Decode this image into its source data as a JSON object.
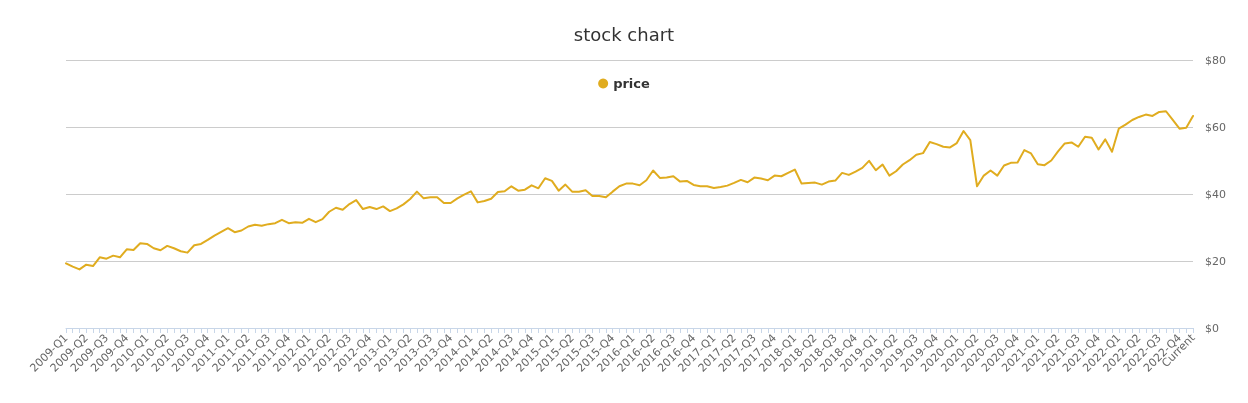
{
  "chart_data": {
    "type": "line",
    "title": "stock chart",
    "categories": [
      "2009-Q1",
      null,
      null,
      "2009-Q2",
      null,
      null,
      "2009-Q3",
      null,
      null,
      "2009-Q4",
      null,
      null,
      "2010-Q1",
      null,
      null,
      "2010-Q2",
      null,
      null,
      "2010-Q3",
      null,
      null,
      "2010-Q4",
      null,
      null,
      "2011-Q1",
      null,
      null,
      "2011-Q2",
      null,
      null,
      "2011-Q3",
      null,
      null,
      "2011-Q4",
      null,
      null,
      "2012-Q1",
      null,
      null,
      "2012-Q2",
      null,
      null,
      "2012-Q3",
      null,
      null,
      "2012-Q4",
      null,
      null,
      "2013-Q1",
      null,
      null,
      "2013-Q2",
      null,
      null,
      "2013-Q3",
      null,
      null,
      "2013-Q4",
      null,
      null,
      "2014-Q1",
      null,
      null,
      "2014-Q2",
      null,
      null,
      "2014-Q3",
      null,
      null,
      "2014-Q4",
      null,
      null,
      "2015-Q1",
      null,
      null,
      "2015-Q2",
      null,
      null,
      "2015-Q3",
      null,
      null,
      "2015-Q4",
      null,
      null,
      "2016-Q1",
      null,
      null,
      "2016-Q2",
      null,
      null,
      "2016-Q3",
      null,
      null,
      "2016-Q4",
      null,
      null,
      "2017-Q1",
      null,
      null,
      "2017-Q2",
      null,
      null,
      "2017-Q3",
      null,
      null,
      "2017-Q4",
      null,
      null,
      "2018-Q1",
      null,
      null,
      "2018-Q2",
      null,
      null,
      "2018-Q3",
      null,
      null,
      "2018-Q4",
      null,
      null,
      "2019-Q1",
      null,
      null,
      "2019-Q2",
      null,
      null,
      "2019-Q3",
      null,
      null,
      "2019-Q4",
      null,
      null,
      "2020-Q1",
      null,
      null,
      "2020-Q2",
      null,
      null,
      "2020-Q3",
      null,
      null,
      "2020-Q4",
      null,
      null,
      "2021-Q1",
      null,
      null,
      "2021-Q2",
      null,
      null,
      "2021-Q3",
      null,
      null,
      "2021-Q4",
      null,
      null,
      "2022-Q1",
      null,
      null,
      "2022-Q2",
      null,
      null,
      "2022-Q3",
      null,
      null,
      "2022-Q4",
      null,
      "Current"
    ],
    "series": [
      {
        "name": "price",
        "color": "#e0ac1f",
        "values": [
          19.3,
          18.3,
          17.5,
          18.9,
          18.5,
          21.1,
          20.7,
          21.6,
          21.1,
          23.5,
          23.3,
          25.3,
          25.1,
          23.8,
          23.2,
          24.5,
          23.8,
          22.9,
          22.5,
          24.7,
          25.1,
          26.3,
          27.6,
          28.7,
          29.8,
          28.6,
          29.1,
          30.3,
          30.8,
          30.5,
          31.0,
          31.3,
          32.3,
          31.3,
          31.6,
          31.4,
          32.6,
          31.6,
          32.5,
          34.7,
          35.9,
          35.3,
          37.0,
          38.2,
          35.5,
          36.1,
          35.5,
          36.3,
          34.9,
          35.7,
          36.9,
          38.5,
          40.7,
          38.7,
          39.0,
          39.0,
          37.3,
          37.3,
          38.7,
          39.8,
          40.8,
          37.5,
          37.9,
          38.6,
          40.6,
          40.8,
          42.3,
          41.0,
          41.3,
          42.6,
          41.7,
          44.7,
          43.9,
          41.0,
          42.8,
          40.7,
          40.7,
          41.1,
          39.4,
          39.4,
          39.0,
          40.7,
          42.3,
          43.1,
          43.1,
          42.6,
          44.1,
          47.0,
          44.8,
          44.9,
          45.3,
          43.7,
          43.9,
          42.7,
          42.3,
          42.3,
          41.8,
          42.1,
          42.5,
          43.3,
          44.2,
          43.5,
          44.9,
          44.6,
          44.1,
          45.5,
          45.3,
          46.3,
          47.3,
          43.1,
          43.3,
          43.4,
          42.8,
          43.7,
          44.0,
          46.3,
          45.7,
          46.7,
          47.8,
          49.9,
          47.1,
          48.8,
          45.5,
          46.8,
          48.8,
          50.1,
          51.7,
          52.2,
          55.5,
          54.9,
          54.1,
          53.9,
          55.2,
          58.8,
          56.1,
          42.3,
          45.5,
          47.0,
          45.5,
          48.5,
          49.3,
          49.4,
          53.1,
          52.1,
          48.9,
          48.6,
          50.0,
          52.7,
          55.1,
          55.4,
          54.1,
          57.1,
          56.8,
          53.3,
          56.3,
          52.6,
          59.5,
          60.7,
          62.1,
          63.0,
          63.7,
          63.3,
          64.5,
          64.7,
          62.1,
          59.5,
          59.8,
          63.3
        ]
      }
    ],
    "ylim": [
      0,
      80
    ],
    "yticks": [
      {
        "value": 0,
        "label": "$0"
      },
      {
        "value": 20,
        "label": "$20"
      },
      {
        "value": 40,
        "label": "$40"
      },
      {
        "value": 60,
        "label": "$60"
      },
      {
        "value": 80,
        "label": "$80"
      }
    ],
    "grid": "y",
    "legend": "top",
    "marker": "none",
    "line_style": "solid"
  }
}
